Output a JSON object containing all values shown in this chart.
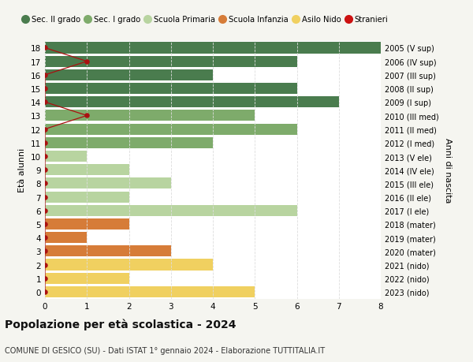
{
  "ages": [
    18,
    17,
    16,
    15,
    14,
    13,
    12,
    11,
    10,
    9,
    8,
    7,
    6,
    5,
    4,
    3,
    2,
    1,
    0
  ],
  "right_labels": [
    "2005 (V sup)",
    "2006 (IV sup)",
    "2007 (III sup)",
    "2008 (II sup)",
    "2009 (I sup)",
    "2010 (III med)",
    "2011 (II med)",
    "2012 (I med)",
    "2013 (V ele)",
    "2014 (IV ele)",
    "2015 (III ele)",
    "2016 (II ele)",
    "2017 (I ele)",
    "2018 (mater)",
    "2019 (mater)",
    "2020 (mater)",
    "2021 (nido)",
    "2022 (nido)",
    "2023 (nido)"
  ],
  "values": [
    8,
    6,
    4,
    6,
    7,
    5,
    6,
    4,
    1,
    2,
    3,
    2,
    6,
    2,
    1,
    3,
    4,
    2,
    5
  ],
  "bar_colors": [
    "#4a7c4e",
    "#4a7c4e",
    "#4a7c4e",
    "#4a7c4e",
    "#4a7c4e",
    "#7eab6b",
    "#7eab6b",
    "#7eab6b",
    "#b8d4a0",
    "#b8d4a0",
    "#b8d4a0",
    "#b8d4a0",
    "#b8d4a0",
    "#d67c38",
    "#d67c38",
    "#d67c38",
    "#f0d060",
    "#f0d060",
    "#f0d060"
  ],
  "stranieri_x": {
    "18": 0,
    "17": 1,
    "16": 0,
    "15": 0,
    "14": 0,
    "13": 1,
    "12": 0,
    "11": 0,
    "10": 0,
    "9": 0,
    "8": 0,
    "7": 0,
    "6": 0,
    "5": 0,
    "4": 0,
    "3": 0,
    "2": 0,
    "1": 0,
    "0": 0
  },
  "legend_labels": [
    "Sec. II grado",
    "Sec. I grado",
    "Scuola Primaria",
    "Scuola Infanzia",
    "Asilo Nido",
    "Stranieri"
  ],
  "legend_colors": [
    "#4a7c4e",
    "#7eab6b",
    "#b8d4a0",
    "#d67c38",
    "#f0d060",
    "#cc1111"
  ],
  "title": "Popolazione per età scolastica - 2024",
  "subtitle": "COMUNE DI GESICO (SU) - Dati ISTAT 1° gennaio 2024 - Elaborazione TUTTITALIA.IT",
  "ylabel": "Età alunni",
  "ylabel2": "Anni di nascita",
  "xlim": [
    0,
    8
  ],
  "ylim": [
    -0.5,
    18.5
  ],
  "background_color": "#f5f5f0",
  "bar_background": "#ffffff",
  "grid_color": "#dddddd",
  "stranieri_color": "#aa1111",
  "bar_height": 0.82
}
